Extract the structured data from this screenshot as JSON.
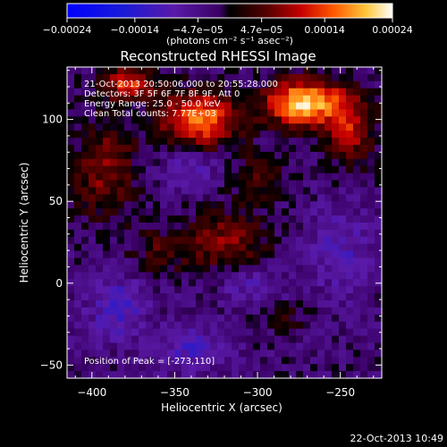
{
  "chart_data": {
    "type": "heatmap",
    "title": "Reconstructed RHESSI Image",
    "xlabel": "Heliocentric X (arcsec)",
    "ylabel": "Heliocentric Y (arcsec)",
    "xlim": [
      -415,
      -225
    ],
    "ylim": [
      -58,
      132
    ],
    "x_ticks": [
      -400,
      -350,
      -300,
      -250
    ],
    "x_tick_labels": [
      "−400",
      "−350",
      "−300",
      "−250"
    ],
    "y_ticks": [
      -50,
      0,
      50,
      100
    ],
    "y_tick_labels": [
      "−50",
      "0",
      "50",
      "100"
    ],
    "colorbar": {
      "min": -0.00024,
      "max": 0.00024,
      "ticks": [
        -0.00024,
        -0.00014,
        -4.7e-05,
        4.7e-05,
        0.00014,
        0.00024
      ],
      "tick_labels": [
        "−0.00024",
        "−0.00014",
        "−4.7e−05",
        "4.7e−05",
        "0.00014",
        "0.00024"
      ],
      "units_label": "(photons cm⁻² s⁻¹ asec⁻²)"
    },
    "annotations": [
      "21-Oct-2013 20:50:06.000 to 20:55:28.000",
      "Detectors: 3F 5F 6F 7F 8F 9F, Att 0",
      "Energy Range: 25.0 - 50.0 keV",
      "Clean     Total counts: 7.77E+03"
    ],
    "peak_label": "Position of Peak = [-273,110]",
    "peak": [
      -273,
      110
    ],
    "sources": [
      {
        "x": -273,
        "y": 110,
        "value": 0.00024,
        "sx": 16,
        "sy": 10
      },
      {
        "x": -335,
        "y": 100,
        "value": 0.00021,
        "sx": 16,
        "sy": 12
      },
      {
        "x": -378,
        "y": 122,
        "value": 0.00015,
        "sx": 12,
        "sy": 7
      },
      {
        "x": -245,
        "y": 95,
        "value": 0.00013,
        "sx": 10,
        "sy": 16
      },
      {
        "x": -392,
        "y": 70,
        "value": 0.0001,
        "sx": 14,
        "sy": 22
      },
      {
        "x": -320,
        "y": 25,
        "value": 0.0001,
        "sx": 18,
        "sy": 14
      },
      {
        "x": -300,
        "y": 65,
        "value": 7e-05,
        "sx": 12,
        "sy": 10
      },
      {
        "x": -360,
        "y": 20,
        "value": 6e-05,
        "sx": 12,
        "sy": 10
      },
      {
        "x": -282,
        "y": -20,
        "value": 5e-05,
        "sx": 8,
        "sy": 6
      },
      {
        "x": -340,
        "y": 70,
        "value": -6e-05,
        "sx": 14,
        "sy": 10
      },
      {
        "x": -385,
        "y": -15,
        "value": -8e-05,
        "sx": 12,
        "sy": 14
      },
      {
        "x": -305,
        "y": 0,
        "value": -6e-05,
        "sx": 14,
        "sy": 8
      },
      {
        "x": -250,
        "y": 20,
        "value": -6e-05,
        "sx": 14,
        "sy": 18
      },
      {
        "x": -340,
        "y": -40,
        "value": -7e-05,
        "sx": 14,
        "sy": 10
      }
    ],
    "background_level": -3e-05,
    "grid": false
  },
  "timestamp": "22-Oct-2013 10:49"
}
